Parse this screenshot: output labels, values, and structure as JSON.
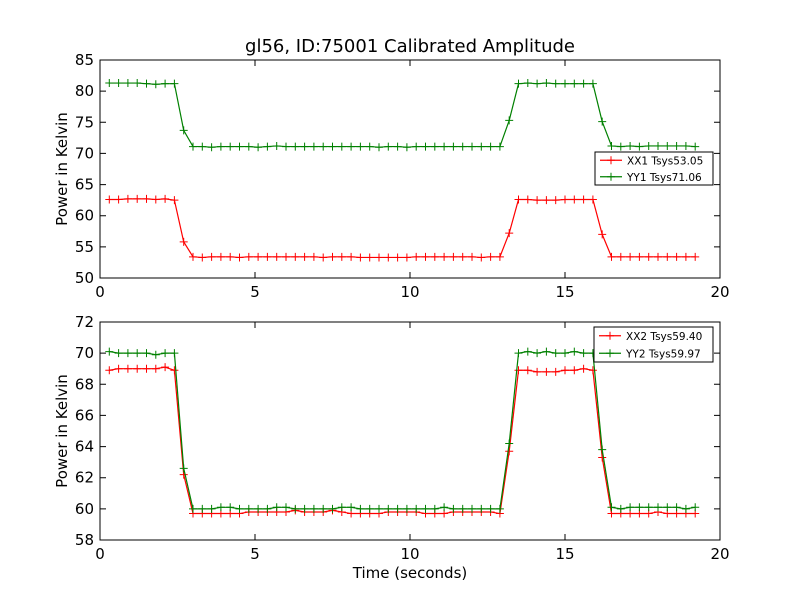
{
  "chart_data": [
    {
      "type": "line",
      "title": "gl56, ID:75001 Calibrated Amplitude",
      "xlabel": "",
      "ylabel": "Power in Kelvin",
      "xlim": [
        0,
        20
      ],
      "ylim": [
        50,
        85
      ],
      "xticks": [
        0,
        5,
        10,
        15,
        20
      ],
      "yticks": [
        50,
        55,
        60,
        65,
        70,
        75,
        80,
        85
      ],
      "grid": false,
      "legend_position": "center-right",
      "x": [
        0.3,
        0.6,
        0.9,
        1.2,
        1.5,
        1.8,
        2.1,
        2.4,
        2.7,
        3.0,
        3.3,
        3.6,
        3.9,
        4.2,
        4.5,
        4.8,
        5.1,
        5.4,
        5.7,
        6.0,
        6.3,
        6.6,
        6.9,
        7.2,
        7.5,
        7.8,
        8.1,
        8.4,
        8.7,
        9.0,
        9.3,
        9.6,
        9.9,
        10.2,
        10.5,
        10.8,
        11.1,
        11.4,
        11.7,
        12.0,
        12.3,
        12.6,
        12.9,
        13.2,
        13.5,
        13.8,
        14.1,
        14.4,
        14.7,
        15.0,
        15.3,
        15.6,
        15.9,
        16.2,
        16.5,
        16.8,
        17.1,
        17.4,
        17.7,
        18.0,
        18.3,
        18.6,
        18.9,
        19.2
      ],
      "series": [
        {
          "name": "XX1 Tsys53.05",
          "color": "#ff0000",
          "values": [
            62.6,
            62.6,
            62.7,
            62.7,
            62.7,
            62.6,
            62.7,
            62.5,
            55.8,
            53.4,
            53.3,
            53.4,
            53.4,
            53.4,
            53.3,
            53.4,
            53.4,
            53.4,
            53.4,
            53.4,
            53.4,
            53.4,
            53.4,
            53.3,
            53.4,
            53.4,
            53.4,
            53.3,
            53.3,
            53.3,
            53.3,
            53.3,
            53.3,
            53.4,
            53.4,
            53.4,
            53.4,
            53.4,
            53.4,
            53.4,
            53.3,
            53.4,
            53.4,
            57.2,
            62.6,
            62.6,
            62.5,
            62.5,
            62.5,
            62.6,
            62.6,
            62.6,
            62.6,
            57.0,
            53.4,
            53.4,
            53.4,
            53.4,
            53.4,
            53.4,
            53.4,
            53.4,
            53.4,
            53.4
          ]
        },
        {
          "name": "YY1 Tsys71.06",
          "color": "#008000",
          "values": [
            81.3,
            81.3,
            81.3,
            81.3,
            81.2,
            81.1,
            81.2,
            81.2,
            73.7,
            71.1,
            71.1,
            71.0,
            71.1,
            71.1,
            71.1,
            71.1,
            71.0,
            71.1,
            71.2,
            71.1,
            71.1,
            71.1,
            71.1,
            71.1,
            71.1,
            71.1,
            71.1,
            71.1,
            71.1,
            71.0,
            71.1,
            71.1,
            71.0,
            71.1,
            71.1,
            71.1,
            71.1,
            71.1,
            71.1,
            71.1,
            71.1,
            71.1,
            71.1,
            75.3,
            81.2,
            81.3,
            81.2,
            81.3,
            81.2,
            81.2,
            81.2,
            81.2,
            81.2,
            75.1,
            71.2,
            71.1,
            71.2,
            71.1,
            71.2,
            71.2,
            71.2,
            71.2,
            71.2,
            71.1
          ]
        }
      ]
    },
    {
      "type": "line",
      "title": "",
      "xlabel": "Time (seconds)",
      "ylabel": "Power in Kelvin",
      "xlim": [
        0,
        20
      ],
      "ylim": [
        58,
        72
      ],
      "xticks": [
        0,
        5,
        10,
        15,
        20
      ],
      "yticks": [
        58,
        60,
        62,
        64,
        66,
        68,
        70,
        72
      ],
      "grid": false,
      "legend_position": "top-right",
      "x": [
        0.3,
        0.6,
        0.9,
        1.2,
        1.5,
        1.8,
        2.1,
        2.4,
        2.7,
        3.0,
        3.3,
        3.6,
        3.9,
        4.2,
        4.5,
        4.8,
        5.1,
        5.4,
        5.7,
        6.0,
        6.3,
        6.6,
        6.9,
        7.2,
        7.5,
        7.8,
        8.1,
        8.4,
        8.7,
        9.0,
        9.3,
        9.6,
        9.9,
        10.2,
        10.5,
        10.8,
        11.1,
        11.4,
        11.7,
        12.0,
        12.3,
        12.6,
        12.9,
        13.2,
        13.5,
        13.8,
        14.1,
        14.4,
        14.7,
        15.0,
        15.3,
        15.6,
        15.9,
        16.2,
        16.5,
        16.8,
        17.1,
        17.4,
        17.7,
        18.0,
        18.3,
        18.6,
        18.9,
        19.2
      ],
      "series": [
        {
          "name": "XX2 Tsys59.40",
          "color": "#ff0000",
          "values": [
            68.9,
            69.0,
            69.0,
            69.0,
            69.0,
            69.0,
            69.1,
            68.9,
            62.2,
            59.7,
            59.7,
            59.7,
            59.7,
            59.7,
            59.7,
            59.8,
            59.8,
            59.8,
            59.8,
            59.8,
            59.9,
            59.8,
            59.8,
            59.8,
            59.9,
            59.8,
            59.7,
            59.7,
            59.7,
            59.7,
            59.8,
            59.8,
            59.8,
            59.8,
            59.7,
            59.7,
            59.7,
            59.8,
            59.8,
            59.8,
            59.8,
            59.8,
            59.7,
            63.7,
            68.9,
            68.9,
            68.8,
            68.8,
            68.8,
            68.9,
            68.9,
            69.0,
            68.9,
            63.3,
            59.7,
            59.7,
            59.7,
            59.7,
            59.7,
            59.8,
            59.7,
            59.7,
            59.7,
            59.7
          ]
        },
        {
          "name": "YY2 Tsys59.97",
          "color": "#008000",
          "values": [
            70.1,
            70.0,
            70.0,
            70.0,
            70.0,
            69.9,
            70.0,
            70.0,
            62.6,
            60.0,
            60.0,
            60.0,
            60.1,
            60.1,
            60.0,
            60.0,
            60.0,
            60.0,
            60.1,
            60.1,
            60.0,
            60.0,
            60.0,
            60.0,
            60.0,
            60.1,
            60.1,
            60.0,
            60.0,
            60.0,
            60.0,
            60.0,
            60.0,
            60.0,
            60.0,
            60.0,
            60.1,
            60.0,
            60.0,
            60.0,
            60.0,
            60.0,
            60.0,
            64.2,
            70.0,
            70.1,
            70.0,
            70.1,
            70.0,
            70.0,
            70.1,
            70.0,
            70.0,
            63.8,
            60.1,
            60.0,
            60.1,
            60.1,
            60.1,
            60.1,
            60.1,
            60.1,
            60.0,
            60.1
          ]
        }
      ]
    }
  ]
}
